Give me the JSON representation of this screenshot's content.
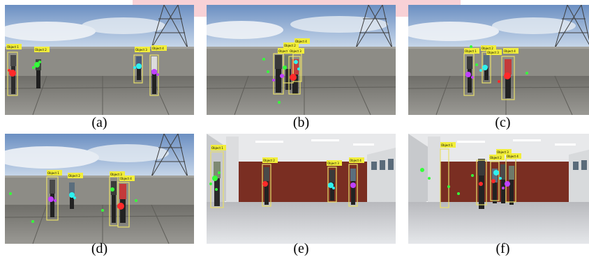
{
  "figure": {
    "panels": [
      {
        "caption": "(a)",
        "scene": "outdoor-rooftop",
        "labels": [
          "Object 1",
          "Object 2",
          "Object 3",
          "Object 4"
        ]
      },
      {
        "caption": "(b)",
        "scene": "outdoor-rooftop",
        "labels": [
          "Object 1",
          "Object 2",
          "Object 3",
          "Object 4"
        ]
      },
      {
        "caption": "(c)",
        "scene": "outdoor-rooftop",
        "labels": [
          "Object 1",
          "Object 2",
          "Object 3",
          "Object 4"
        ]
      },
      {
        "caption": "(d)",
        "scene": "outdoor-rooftop",
        "labels": [
          "Object 1",
          "Object 2",
          "Object 3",
          "Object 4"
        ]
      },
      {
        "caption": "(e)",
        "scene": "indoor-hall",
        "labels": [
          "Object 1",
          "Object 2",
          "Object 3",
          "Object 4"
        ]
      },
      {
        "caption": "(f)",
        "scene": "indoor-hall",
        "labels": [
          "Object 1",
          "Object 2",
          "Object 3",
          "Object 4"
        ]
      }
    ]
  },
  "colors": {
    "box": "#e8e06a",
    "label_bg": "#f2ee3a",
    "track_red": "#ff2a2a",
    "track_green": "#35ff3a",
    "track_cyan": "#2ef2f0",
    "track_magenta": "#c040ff",
    "watermark": "#f7c9cf"
  }
}
